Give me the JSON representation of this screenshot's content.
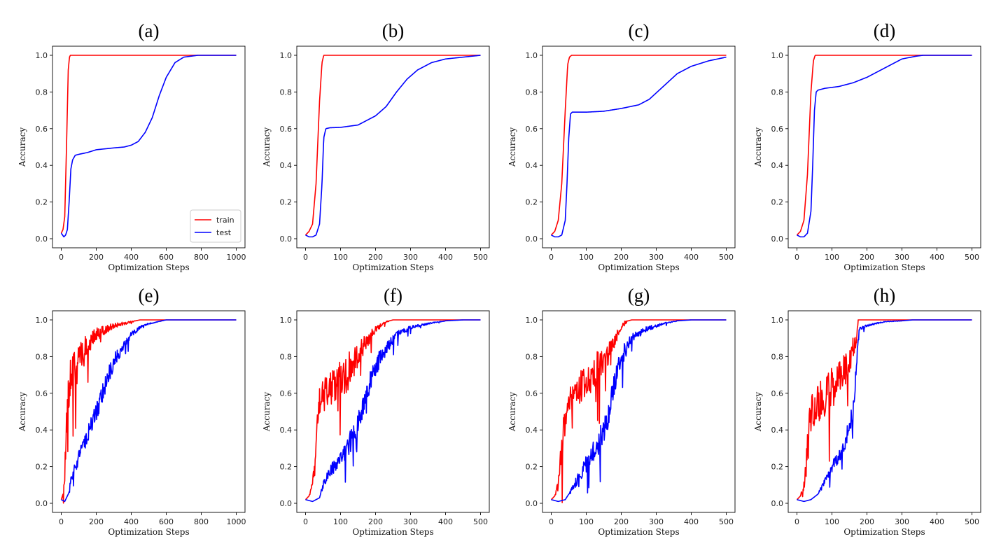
{
  "chart_data": [
    {
      "type": "line",
      "title": "(a)",
      "xlabel": "Optimization Steps",
      "ylabel": "Accuracy",
      "xlim": [
        0,
        1000
      ],
      "ylim": [
        0,
        1
      ],
      "xticks": [
        0,
        200,
        400,
        600,
        800,
        1000
      ],
      "yticks": [
        0.0,
        0.2,
        0.4,
        0.6,
        0.8,
        1.0
      ],
      "legend": {
        "position": "bottom-right",
        "entries": [
          "train",
          "test"
        ]
      },
      "series": [
        {
          "name": "train",
          "color": "#ff0000",
          "noise": 0,
          "x": [
            0,
            10,
            20,
            30,
            40,
            47,
            52,
            60,
            1000
          ],
          "y": [
            0.03,
            0.05,
            0.12,
            0.5,
            0.92,
            0.99,
            1.0,
            1.0,
            1.0
          ]
        },
        {
          "name": "test",
          "color": "#0000ff",
          "noise": 0,
          "x": [
            0,
            15,
            25,
            35,
            45,
            55,
            65,
            80,
            100,
            150,
            200,
            300,
            360,
            400,
            440,
            480,
            520,
            560,
            600,
            650,
            700,
            780,
            1000
          ],
          "y": [
            0.03,
            0.01,
            0.02,
            0.05,
            0.2,
            0.38,
            0.43,
            0.455,
            0.46,
            0.47,
            0.485,
            0.495,
            0.5,
            0.51,
            0.53,
            0.58,
            0.66,
            0.78,
            0.88,
            0.96,
            0.99,
            1.0,
            1.0
          ]
        }
      ]
    },
    {
      "type": "line",
      "title": "(b)",
      "xlabel": "Optimization Steps",
      "ylabel": "Accuracy",
      "xlim": [
        0,
        500
      ],
      "ylim": [
        0,
        1
      ],
      "xticks": [
        0,
        100,
        200,
        300,
        400,
        500
      ],
      "yticks": [
        0.0,
        0.2,
        0.4,
        0.6,
        0.8,
        1.0
      ],
      "series": [
        {
          "name": "train",
          "color": "#ff0000",
          "noise": 0,
          "x": [
            0,
            10,
            20,
            30,
            40,
            47,
            52,
            60,
            500
          ],
          "y": [
            0.02,
            0.04,
            0.08,
            0.3,
            0.75,
            0.96,
            1.0,
            1.0,
            1.0
          ]
        },
        {
          "name": "test",
          "color": "#0000ff",
          "noise": 0,
          "x": [
            0,
            10,
            20,
            30,
            40,
            47,
            52,
            58,
            70,
            100,
            150,
            200,
            230,
            260,
            290,
            320,
            360,
            400,
            450,
            500
          ],
          "y": [
            0.02,
            0.01,
            0.01,
            0.02,
            0.08,
            0.3,
            0.55,
            0.6,
            0.605,
            0.607,
            0.62,
            0.67,
            0.72,
            0.8,
            0.87,
            0.92,
            0.96,
            0.98,
            0.99,
            1.0
          ]
        }
      ]
    },
    {
      "type": "line",
      "title": "(c)",
      "xlabel": "Optimization Steps",
      "ylabel": "Accuracy",
      "xlim": [
        0,
        500
      ],
      "ylim": [
        0,
        1
      ],
      "xticks": [
        0,
        100,
        200,
        300,
        400,
        500
      ],
      "yticks": [
        0.0,
        0.2,
        0.4,
        0.6,
        0.8,
        1.0
      ],
      "series": [
        {
          "name": "train",
          "color": "#ff0000",
          "noise": 0,
          "x": [
            0,
            10,
            20,
            30,
            40,
            47,
            52,
            58,
            500
          ],
          "y": [
            0.02,
            0.04,
            0.1,
            0.3,
            0.7,
            0.95,
            0.99,
            1.0,
            1.0
          ]
        },
        {
          "name": "test",
          "color": "#0000ff",
          "noise": 0,
          "x": [
            0,
            10,
            20,
            30,
            40,
            45,
            50,
            55,
            60,
            100,
            150,
            200,
            250,
            280,
            320,
            360,
            400,
            450,
            500
          ],
          "y": [
            0.02,
            0.01,
            0.01,
            0.02,
            0.1,
            0.3,
            0.55,
            0.68,
            0.69,
            0.69,
            0.695,
            0.71,
            0.73,
            0.76,
            0.83,
            0.9,
            0.94,
            0.97,
            0.99
          ]
        }
      ]
    },
    {
      "type": "line",
      "title": "(d)",
      "xlabel": "Optimization Steps",
      "ylabel": "Accuracy",
      "xlim": [
        0,
        500
      ],
      "ylim": [
        0,
        1
      ],
      "xticks": [
        0,
        100,
        200,
        300,
        400,
        500
      ],
      "yticks": [
        0.0,
        0.2,
        0.4,
        0.6,
        0.8,
        1.0
      ],
      "series": [
        {
          "name": "train",
          "color": "#ff0000",
          "noise": 0,
          "x": [
            0,
            10,
            20,
            30,
            40,
            47,
            52,
            58,
            500
          ],
          "y": [
            0.02,
            0.04,
            0.1,
            0.35,
            0.8,
            0.97,
            1.0,
            1.0,
            1.0
          ]
        },
        {
          "name": "test",
          "color": "#0000ff",
          "noise": 0,
          "x": [
            0,
            10,
            20,
            30,
            40,
            45,
            50,
            55,
            60,
            80,
            120,
            160,
            200,
            250,
            300,
            340,
            360,
            500
          ],
          "y": [
            0.02,
            0.01,
            0.01,
            0.03,
            0.15,
            0.4,
            0.7,
            0.8,
            0.81,
            0.82,
            0.83,
            0.85,
            0.88,
            0.93,
            0.98,
            0.995,
            1.0,
            1.0
          ]
        }
      ]
    },
    {
      "type": "line",
      "title": "(e)",
      "xlabel": "Optimization Steps",
      "ylabel": "Accuracy",
      "xlim": [
        0,
        1000
      ],
      "ylim": [
        0,
        1
      ],
      "xticks": [
        0,
        200,
        400,
        600,
        800,
        1000
      ],
      "yticks": [
        0.0,
        0.2,
        0.4,
        0.6,
        0.8,
        1.0
      ],
      "series": [
        {
          "name": "train",
          "color": "#ff0000",
          "noise": 0.12,
          "x": [
            0,
            10,
            20,
            30,
            40,
            50,
            80,
            120,
            160,
            200,
            250,
            300,
            350,
            400,
            450,
            500,
            1000
          ],
          "y": [
            0.02,
            0.05,
            0.15,
            0.4,
            0.6,
            0.7,
            0.75,
            0.82,
            0.88,
            0.92,
            0.95,
            0.97,
            0.98,
            0.99,
            1.0,
            1.0,
            1.0
          ]
        },
        {
          "name": "test",
          "color": "#0000ff",
          "noise": 0.05,
          "x": [
            0,
            20,
            40,
            60,
            80,
            100,
            140,
            180,
            220,
            250,
            300,
            350,
            400,
            450,
            500,
            550,
            600,
            1000
          ],
          "y": [
            0.02,
            0.01,
            0.05,
            0.15,
            0.2,
            0.25,
            0.35,
            0.45,
            0.55,
            0.65,
            0.78,
            0.85,
            0.92,
            0.96,
            0.98,
            0.99,
            1.0,
            1.0
          ]
        }
      ]
    },
    {
      "type": "line",
      "title": "(f)",
      "xlabel": "Optimization Steps",
      "ylabel": "Accuracy",
      "xlim": [
        0,
        500
      ],
      "ylim": [
        0,
        1
      ],
      "xticks": [
        0,
        100,
        200,
        300,
        400,
        500
      ],
      "yticks": [
        0.0,
        0.2,
        0.4,
        0.6,
        0.8,
        1.0
      ],
      "series": [
        {
          "name": "train",
          "color": "#ff0000",
          "noise": 0.1,
          "x": [
            0,
            10,
            20,
            30,
            40,
            50,
            80,
            120,
            160,
            200,
            230,
            250,
            500
          ],
          "y": [
            0.02,
            0.04,
            0.1,
            0.3,
            0.55,
            0.6,
            0.65,
            0.72,
            0.85,
            0.95,
            0.99,
            1.0,
            1.0
          ]
        },
        {
          "name": "test",
          "color": "#0000ff",
          "noise": 0.06,
          "x": [
            0,
            20,
            40,
            50,
            70,
            100,
            130,
            160,
            190,
            220,
            260,
            300,
            350,
            400,
            450,
            500
          ],
          "y": [
            0.02,
            0.01,
            0.03,
            0.1,
            0.18,
            0.25,
            0.35,
            0.5,
            0.7,
            0.82,
            0.92,
            0.96,
            0.98,
            0.995,
            1.0,
            1.0
          ]
        }
      ]
    },
    {
      "type": "line",
      "title": "(g)",
      "xlabel": "Optimization Steps",
      "ylabel": "Accuracy",
      "xlim": [
        0,
        500
      ],
      "ylim": [
        0,
        1
      ],
      "xticks": [
        0,
        100,
        200,
        300,
        400,
        500
      ],
      "yticks": [
        0.0,
        0.2,
        0.4,
        0.6,
        0.8,
        1.0
      ],
      "series": [
        {
          "name": "train",
          "color": "#ff0000",
          "noise": 0.1,
          "x": [
            0,
            10,
            20,
            30,
            40,
            50,
            80,
            120,
            160,
            190,
            210,
            230,
            500
          ],
          "y": [
            0.02,
            0.04,
            0.1,
            0.3,
            0.5,
            0.6,
            0.65,
            0.72,
            0.82,
            0.93,
            0.99,
            1.0,
            1.0
          ]
        },
        {
          "name": "test",
          "color": "#0000ff",
          "noise": 0.07,
          "x": [
            0,
            20,
            40,
            60,
            80,
            100,
            130,
            160,
            180,
            200,
            230,
            270,
            320,
            360,
            400,
            500
          ],
          "y": [
            0.02,
            0.01,
            0.02,
            0.08,
            0.15,
            0.22,
            0.32,
            0.45,
            0.65,
            0.8,
            0.9,
            0.95,
            0.98,
            0.995,
            1.0,
            1.0
          ]
        }
      ]
    },
    {
      "type": "line",
      "title": "(h)",
      "xlabel": "Optimization Steps",
      "ylabel": "Accuracy",
      "xlim": [
        0,
        500
      ],
      "ylim": [
        0,
        1
      ],
      "xticks": [
        0,
        100,
        200,
        300,
        400,
        500
      ],
      "yticks": [
        0.0,
        0.2,
        0.4,
        0.6,
        0.8,
        1.0
      ],
      "series": [
        {
          "name": "train",
          "color": "#ff0000",
          "noise": 0.11,
          "x": [
            0,
            10,
            20,
            30,
            40,
            60,
            90,
            120,
            150,
            170,
            175,
            180,
            500
          ],
          "y": [
            0.02,
            0.04,
            0.1,
            0.3,
            0.5,
            0.55,
            0.62,
            0.68,
            0.8,
            0.9,
            1.0,
            1.0,
            1.0
          ]
        },
        {
          "name": "test",
          "color": "#0000ff",
          "noise": 0.05,
          "x": [
            0,
            20,
            40,
            60,
            80,
            100,
            130,
            160,
            170,
            178,
            200,
            250,
            300,
            330,
            500
          ],
          "y": [
            0.02,
            0.01,
            0.02,
            0.05,
            0.12,
            0.2,
            0.3,
            0.5,
            0.75,
            0.95,
            0.97,
            0.99,
            0.995,
            1.0,
            1.0
          ]
        }
      ]
    }
  ]
}
